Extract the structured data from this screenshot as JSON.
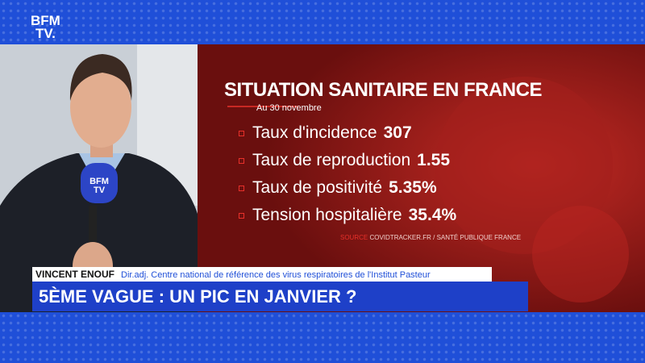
{
  "logo": {
    "line1": "BFM",
    "line2": "TV."
  },
  "infographic": {
    "title": "SITUATION SANITAIRE EN FRANCE",
    "subtitle": "Au 30 novembre",
    "items": [
      {
        "label": "Taux d'incidence",
        "value": "307"
      },
      {
        "label": "Taux de reproduction",
        "value": "1.55"
      },
      {
        "label": "Taux de positivité",
        "value": "5.35%"
      },
      {
        "label": "Tension hospitalière",
        "value": "35.4%"
      }
    ],
    "source_label": "SOURCE",
    "source": "COVIDTRACKER.FR / SANTÉ PUBLIQUE FRANCE"
  },
  "microphone": {
    "line1": "BFM",
    "line2": "TV"
  },
  "lower_third": {
    "name": "VINCENT ENOUF",
    "role": "Dir.adj. Centre national de référence des virus respiratoires de l'Institut Pasteur",
    "headline": "5ÈME VAGUE : UN PIC EN JANVIER ?"
  }
}
